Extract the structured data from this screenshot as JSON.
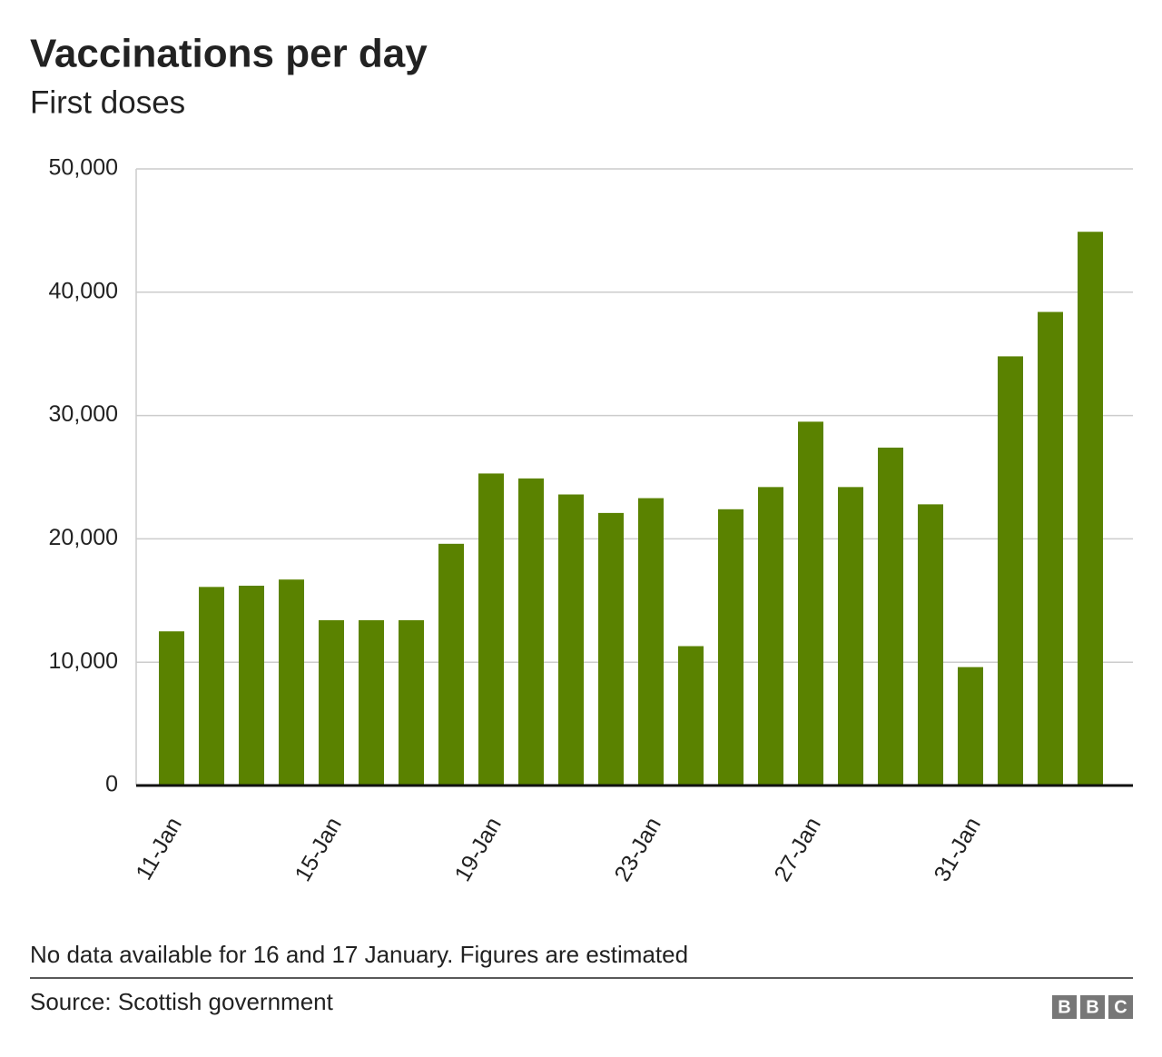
{
  "chart_data": {
    "type": "bar",
    "title": "Vaccinations per day",
    "subtitle": "First doses",
    "categories": [
      "11-Jan",
      null,
      null,
      null,
      "15-Jan",
      null,
      null,
      null,
      "19-Jan",
      null,
      null,
      null,
      "23-Jan",
      null,
      null,
      null,
      "27-Jan",
      null,
      null,
      null,
      "31-Jan",
      null,
      null,
      null
    ],
    "values": [
      12500,
      16100,
      16200,
      16700,
      13400,
      13400,
      13400,
      19600,
      25300,
      24900,
      23600,
      22100,
      23300,
      11300,
      22400,
      24200,
      29500,
      24200,
      27400,
      22800,
      9600,
      34800,
      38400,
      44900
    ],
    "color": "#5a8200",
    "ylim": [
      0,
      50000
    ],
    "yticks": [
      0,
      {
        "value": 10000,
        "label": "10,000"
      },
      {
        "value": 20000,
        "label": "20,000"
      },
      {
        "value": 30000,
        "label": "30,000"
      },
      {
        "value": 40000,
        "label": "40,000"
      },
      {
        "value": 50000,
        "label": "50,000"
      }
    ],
    "grid": true,
    "note": "No data available for 16 and 17 January. Figures are estimated",
    "source": "Source: Scottish government"
  }
}
